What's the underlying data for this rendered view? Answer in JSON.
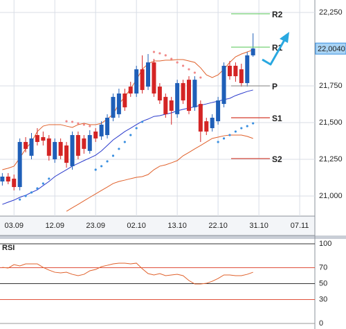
{
  "chart_data": [
    {
      "type": "candlestick",
      "xlim": [
        -0.4,
        53.6
      ],
      "xticks": [
        {
          "value": 2,
          "label": "03.09"
        },
        {
          "value": 9,
          "label": "12.09"
        },
        {
          "value": 16,
          "label": "23.09"
        },
        {
          "value": 23,
          "label": "02.10"
        },
        {
          "value": 30,
          "label": "13.10"
        },
        {
          "value": 37,
          "label": "22.10"
        },
        {
          "value": 44,
          "label": "31.10"
        },
        {
          "value": 51,
          "label": "07.11"
        }
      ],
      "ylim": [
        20.863,
        22.335
      ],
      "yticks": [
        {
          "value": 22.25,
          "label": "22,250"
        },
        {
          "value": 21.75,
          "label": "21,750"
        },
        {
          "value": 21.5,
          "label": "21,500"
        },
        {
          "value": 21.25,
          "label": "21,250"
        },
        {
          "value": 21.0,
          "label": "21,000"
        }
      ],
      "grid": true,
      "up_color": "#1f5fb8",
      "down_color": "#d42424",
      "open": [
        21.099,
        21.132,
        21.118,
        21.061,
        21.368,
        21.274,
        21.415,
        21.401,
        21.392,
        21.25,
        21.368,
        21.344,
        21.203,
        21.415,
        21.392,
        21.307,
        21.439,
        21.406,
        21.415,
        21.533,
        21.557,
        21.698,
        21.745,
        21.698,
        21.863,
        21.745,
        21.91,
        21.745,
        21.675,
        21.651,
        21.557,
        21.769,
        21.792,
        21.604,
        21.627,
        21.509,
        21.462,
        21.509,
        21.627,
        21.887,
        21.887,
        21.863,
        21.769,
        21.958
      ],
      "high": [
        21.156,
        21.156,
        21.146,
        21.392,
        21.401,
        21.429,
        21.462,
        21.439,
        21.415,
        21.392,
        21.392,
        21.368,
        21.439,
        21.439,
        21.415,
        21.448,
        21.462,
        21.509,
        21.557,
        21.698,
        21.731,
        21.731,
        21.778,
        21.887,
        21.958,
        21.967,
        21.934,
        21.769,
        21.698,
        21.675,
        21.792,
        21.792,
        21.816,
        21.816,
        21.651,
        21.533,
        21.557,
        21.675,
        21.91,
        21.92,
        21.91,
        21.901,
        21.981,
        22.108
      ],
      "low": [
        21.071,
        21.08,
        21.038,
        21.038,
        21.297,
        21.25,
        21.344,
        21.344,
        21.241,
        21.226,
        21.25,
        21.193,
        21.179,
        21.25,
        21.288,
        21.288,
        21.368,
        21.382,
        21.392,
        21.509,
        21.533,
        21.58,
        21.675,
        21.675,
        21.698,
        21.722,
        21.675,
        21.627,
        21.533,
        21.486,
        21.533,
        21.627,
        21.557,
        21.58,
        21.368,
        21.415,
        21.439,
        21.486,
        21.604,
        21.792,
        21.778,
        21.745,
        21.745,
        21.948
      ],
      "close": [
        21.132,
        21.099,
        21.061,
        21.368,
        21.321,
        21.392,
        21.368,
        21.377,
        21.274,
        21.368,
        21.274,
        21.226,
        21.415,
        21.274,
        21.321,
        21.415,
        21.392,
        21.486,
        21.533,
        21.675,
        21.698,
        21.604,
        21.698,
        21.863,
        21.722,
        21.91,
        21.698,
        21.651,
        21.557,
        21.58,
        21.769,
        21.651,
        21.58,
        21.792,
        21.439,
        21.439,
        21.533,
        21.651,
        21.887,
        21.816,
        21.816,
        21.769,
        21.958,
        22.005
      ],
      "lines": [
        {
          "color": "#e0602a",
          "values": [
            21.179,
            21.189,
            21.203,
            21.259,
            21.321,
            21.368,
            21.439,
            21.476,
            21.486,
            21.486,
            21.486,
            21.476,
            21.467,
            21.486,
            21.495,
            21.486,
            21.486,
            21.495,
            21.524,
            21.557,
            21.627,
            21.675,
            21.731,
            21.792,
            21.863,
            21.901,
            21.92,
            21.92,
            21.925,
            21.925,
            21.929,
            21.929,
            21.92,
            21.91,
            21.873,
            21.825,
            21.807,
            21.825,
            21.863,
            21.91,
            21.948,
            21.967,
            21.981,
            21.995
          ]
        },
        {
          "color": "#e0602a",
          "values": [
            null,
            null,
            null,
            null,
            null,
            null,
            null,
            null,
            null,
            null,
            null,
            20.896,
            20.92,
            20.943,
            20.967,
            20.991,
            21.014,
            21.038,
            21.061,
            21.085,
            21.099,
            21.108,
            21.118,
            21.127,
            21.132,
            21.146,
            21.179,
            21.203,
            21.212,
            21.226,
            21.241,
            21.274,
            21.297,
            21.321,
            21.344,
            21.368,
            21.392,
            21.401,
            21.41,
            21.415,
            21.415,
            21.415,
            21.406,
            21.392
          ]
        },
        {
          "color": "#2a3acc",
          "values": [
            20.943,
            20.958,
            20.972,
            20.991,
            21.005,
            21.024,
            21.042,
            21.071,
            21.099,
            21.132,
            21.156,
            21.179,
            21.203,
            21.222,
            21.241,
            21.259,
            21.278,
            21.307,
            21.344,
            21.382,
            21.41,
            21.439,
            21.462,
            21.486,
            21.509,
            21.524,
            21.542,
            21.547,
            21.557,
            21.566,
            21.58,
            21.59,
            21.599,
            21.608,
            21.618,
            21.627,
            21.637,
            21.646,
            21.656,
            21.665,
            21.684,
            21.698,
            21.712,
            21.722
          ]
        }
      ],
      "dots": [
        {
          "color": "#f08a8a",
          "values": [
            null,
            null,
            null,
            null,
            null,
            null,
            null,
            null,
            null,
            null,
            null,
            21.509,
            21.505,
            21.495,
            21.486,
            21.476,
            null,
            null,
            null,
            null,
            null,
            null,
            null,
            null,
            null,
            null,
            21.981,
            21.972,
            21.958,
            21.934,
            21.91,
            21.887,
            21.863,
            21.84,
            21.807,
            null,
            null,
            null,
            null,
            null,
            null,
            null,
            null,
            null
          ]
        },
        {
          "color": "#3a8fe0",
          "values": [
            null,
            null,
            null,
            20.976,
            21.0,
            21.024,
            21.052,
            21.085,
            21.118,
            null,
            null,
            null,
            null,
            null,
            null,
            null,
            21.179,
            21.203,
            21.236,
            21.274,
            21.321,
            21.368,
            21.415,
            21.462,
            21.505,
            null,
            null,
            null,
            null,
            null,
            null,
            null,
            null,
            null,
            null,
            null,
            null,
            21.368,
            21.392,
            21.415,
            21.439,
            21.462,
            21.476,
            21.495
          ]
        }
      ],
      "pivots": [
        {
          "name": "R2",
          "value": 22.241,
          "color": "#66cc66"
        },
        {
          "name": "R1",
          "value": 22.014,
          "color": "#66cc66"
        },
        {
          "name": "P",
          "value": 21.75,
          "color": "#999999"
        },
        {
          "name": "S1",
          "value": 21.533,
          "color": "#d43a2a"
        },
        {
          "name": "S2",
          "value": 21.255,
          "color": "#d43a2a"
        }
      ],
      "last_price": {
        "value": 22.004,
        "label": "22,0040"
      }
    },
    {
      "type": "line",
      "title": "RSI",
      "xlim": [
        -0.4,
        53.6
      ],
      "ylim": [
        -6.95,
        106.09
      ],
      "yticks": [
        100,
        70,
        50,
        30,
        0
      ],
      "grid_colors": [
        "#333333",
        "#e0503a",
        "#333333",
        "#e0503a",
        "#999999"
      ],
      "color": "#e0602a",
      "values": [
        70.4,
        69.6,
        73.9,
        72.2,
        74.8,
        74.8,
        74.8,
        70.4,
        67.0,
        64.3,
        63.5,
        64.3,
        61.7,
        60.0,
        61.7,
        66.1,
        67.8,
        71.3,
        73.0,
        74.8,
        75.7,
        75.7,
        74.8,
        75.7,
        68.7,
        62.6,
        60.9,
        62.6,
        60.0,
        60.9,
        61.7,
        60.0,
        53.9,
        49.6,
        49.6,
        50.4,
        53.0,
        56.5,
        60.9,
        60.9,
        60.0,
        60.0,
        61.7,
        64.3
      ]
    }
  ]
}
